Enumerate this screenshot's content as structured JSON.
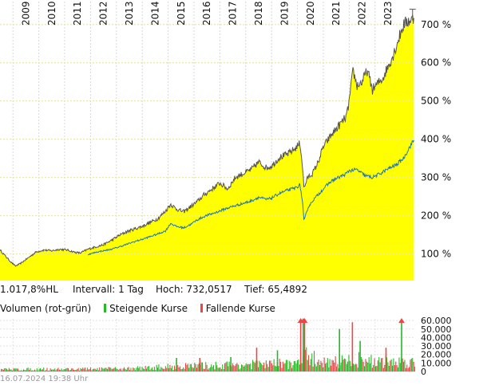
{
  "chart_data": {
    "type": "area",
    "title": "",
    "x_year_labels": [
      "2009",
      "2010",
      "2011",
      "2012",
      "2013",
      "2014",
      "2015",
      "2016",
      "2017",
      "2018",
      "2019",
      "2020",
      "2021",
      "2022",
      "2023"
    ],
    "x_range": [
      2008.5,
      2024.55
    ],
    "y_ticks": [
      100,
      200,
      300,
      400,
      500,
      600,
      700
    ],
    "y_tick_labels": [
      "100 %",
      "200 %",
      "300 %",
      "400 %",
      "500 %",
      "600 %",
      "700 %"
    ],
    "ylim": [
      30,
      760
    ],
    "grid": true,
    "series": [
      {
        "role": "main",
        "color": "#555555",
        "fill": "#ffff00",
        "x": [
          2008.5,
          2008.7,
          2008.9,
          2009.1,
          2009.3,
          2009.6,
          2009.9,
          2010.2,
          2010.5,
          2010.8,
          2011.1,
          2011.4,
          2011.6,
          2011.9,
          2012.2,
          2012.5,
          2012.8,
          2013.1,
          2013.4,
          2013.7,
          2014.0,
          2014.3,
          2014.6,
          2014.9,
          2015.1,
          2015.3,
          2015.6,
          2015.9,
          2016.1,
          2016.4,
          2016.7,
          2017.0,
          2017.3,
          2017.6,
          2017.9,
          2018.2,
          2018.5,
          2018.8,
          2019.0,
          2019.3,
          2019.6,
          2019.9,
          2020.1,
          2020.2,
          2020.25,
          2020.4,
          2020.6,
          2020.8,
          2021.0,
          2021.3,
          2021.6,
          2021.9,
          2022.0,
          2022.15,
          2022.3,
          2022.5,
          2022.7,
          2022.9,
          2023.1,
          2023.3,
          2023.5,
          2023.7,
          2023.9,
          2024.1,
          2024.3,
          2024.5
        ],
        "values": [
          110,
          95,
          80,
          68,
          75,
          90,
          105,
          110,
          108,
          112,
          110,
          104,
          102,
          112,
          118,
          124,
          135,
          148,
          158,
          165,
          172,
          182,
          192,
          212,
          230,
          218,
          210,
          225,
          235,
          255,
          270,
          285,
          270,
          300,
          310,
          320,
          340,
          325,
          330,
          352,
          360,
          375,
          390,
          325,
          272,
          300,
          312,
          340,
          380,
          410,
          435,
          460,
          500,
          580,
          540,
          550,
          580,
          530,
          545,
          560,
          590,
          620,
          660,
          700,
          710,
          715
        ]
      },
      {
        "role": "comparison",
        "color": "#1f77b4",
        "x": [
          2011.9,
          2012.2,
          2012.5,
          2012.8,
          2013.1,
          2013.4,
          2013.7,
          2014.0,
          2014.3,
          2014.6,
          2014.9,
          2015.1,
          2015.3,
          2015.6,
          2015.9,
          2016.1,
          2016.4,
          2016.7,
          2017.0,
          2017.3,
          2017.6,
          2017.9,
          2018.2,
          2018.5,
          2018.8,
          2019.0,
          2019.3,
          2019.6,
          2019.9,
          2020.1,
          2020.2,
          2020.25,
          2020.4,
          2020.6,
          2020.8,
          2021.0,
          2021.3,
          2021.6,
          2021.9,
          2022.0,
          2022.3,
          2022.6,
          2022.9,
          2023.2,
          2023.5,
          2023.8,
          2024.1,
          2024.3,
          2024.5
        ],
        "values": [
          98,
          104,
          108,
          112,
          118,
          125,
          132,
          138,
          145,
          152,
          160,
          180,
          172,
          168,
          178,
          188,
          198,
          205,
          212,
          220,
          226,
          232,
          238,
          248,
          242,
          246,
          258,
          266,
          272,
          280,
          232,
          185,
          220,
          240,
          255,
          270,
          290,
          300,
          310,
          318,
          320,
          305,
          300,
          310,
          322,
          332,
          350,
          375,
          398
        ]
      }
    ],
    "info": {
      "change_label": "1.017,8%HL",
      "interval_label": "Intervall: 1 Tag",
      "high_label": "Hoch: 732,0517",
      "low_label": "Tief: 65,4892"
    },
    "volume": {
      "title": "Volumen (rot-grün)",
      "legend_up": "Steigende Kurse",
      "legend_down": "Fallende Kurse",
      "up_color": "#22bb22",
      "down_color": "#ee4444",
      "y_ticks": [
        0,
        10000,
        20000,
        30000,
        40000,
        50000,
        60000
      ],
      "y_tick_labels": [
        "0",
        "10.000",
        "20.000",
        "30.000",
        "40.000",
        "50.000",
        "60.000"
      ],
      "ylim": [
        0,
        62000
      ],
      "level": {
        "x": [
          2008.5,
          2010.0,
          2011.5,
          2013.0,
          2014.0,
          2015.0,
          2016.0,
          2017.0,
          2018.0,
          2019.0,
          2020.0,
          2020.3,
          2021.0,
          2022.0,
          2022.5,
          2023.0,
          2024.0,
          2024.55
        ],
        "values": [
          3000,
          3500,
          3500,
          4000,
          5000,
          7000,
          8000,
          9000,
          10000,
          11000,
          12000,
          22000,
          14000,
          15000,
          18000,
          14000,
          14000,
          13000
        ]
      },
      "spikes": [
        {
          "x": 2015.3,
          "value": 16000
        },
        {
          "x": 2016.2,
          "value": 16000
        },
        {
          "x": 2017.4,
          "value": 17000
        },
        {
          "x": 2018.4,
          "value": 28000
        },
        {
          "x": 2019.2,
          "value": 25000
        },
        {
          "x": 2020.1,
          "value": 60000,
          "clipped": true
        },
        {
          "x": 2020.2,
          "value": 60000,
          "clipped": true
        },
        {
          "x": 2020.25,
          "value": 60000,
          "clipped": true
        },
        {
          "x": 2021.6,
          "value": 50000
        },
        {
          "x": 2022.1,
          "value": 58000
        },
        {
          "x": 2022.4,
          "value": 36000
        },
        {
          "x": 2023.4,
          "value": 28000
        },
        {
          "x": 2024.0,
          "value": 60000,
          "clipped": true
        }
      ]
    },
    "timestamp": "16.07.2024 19:38 Uhr"
  }
}
